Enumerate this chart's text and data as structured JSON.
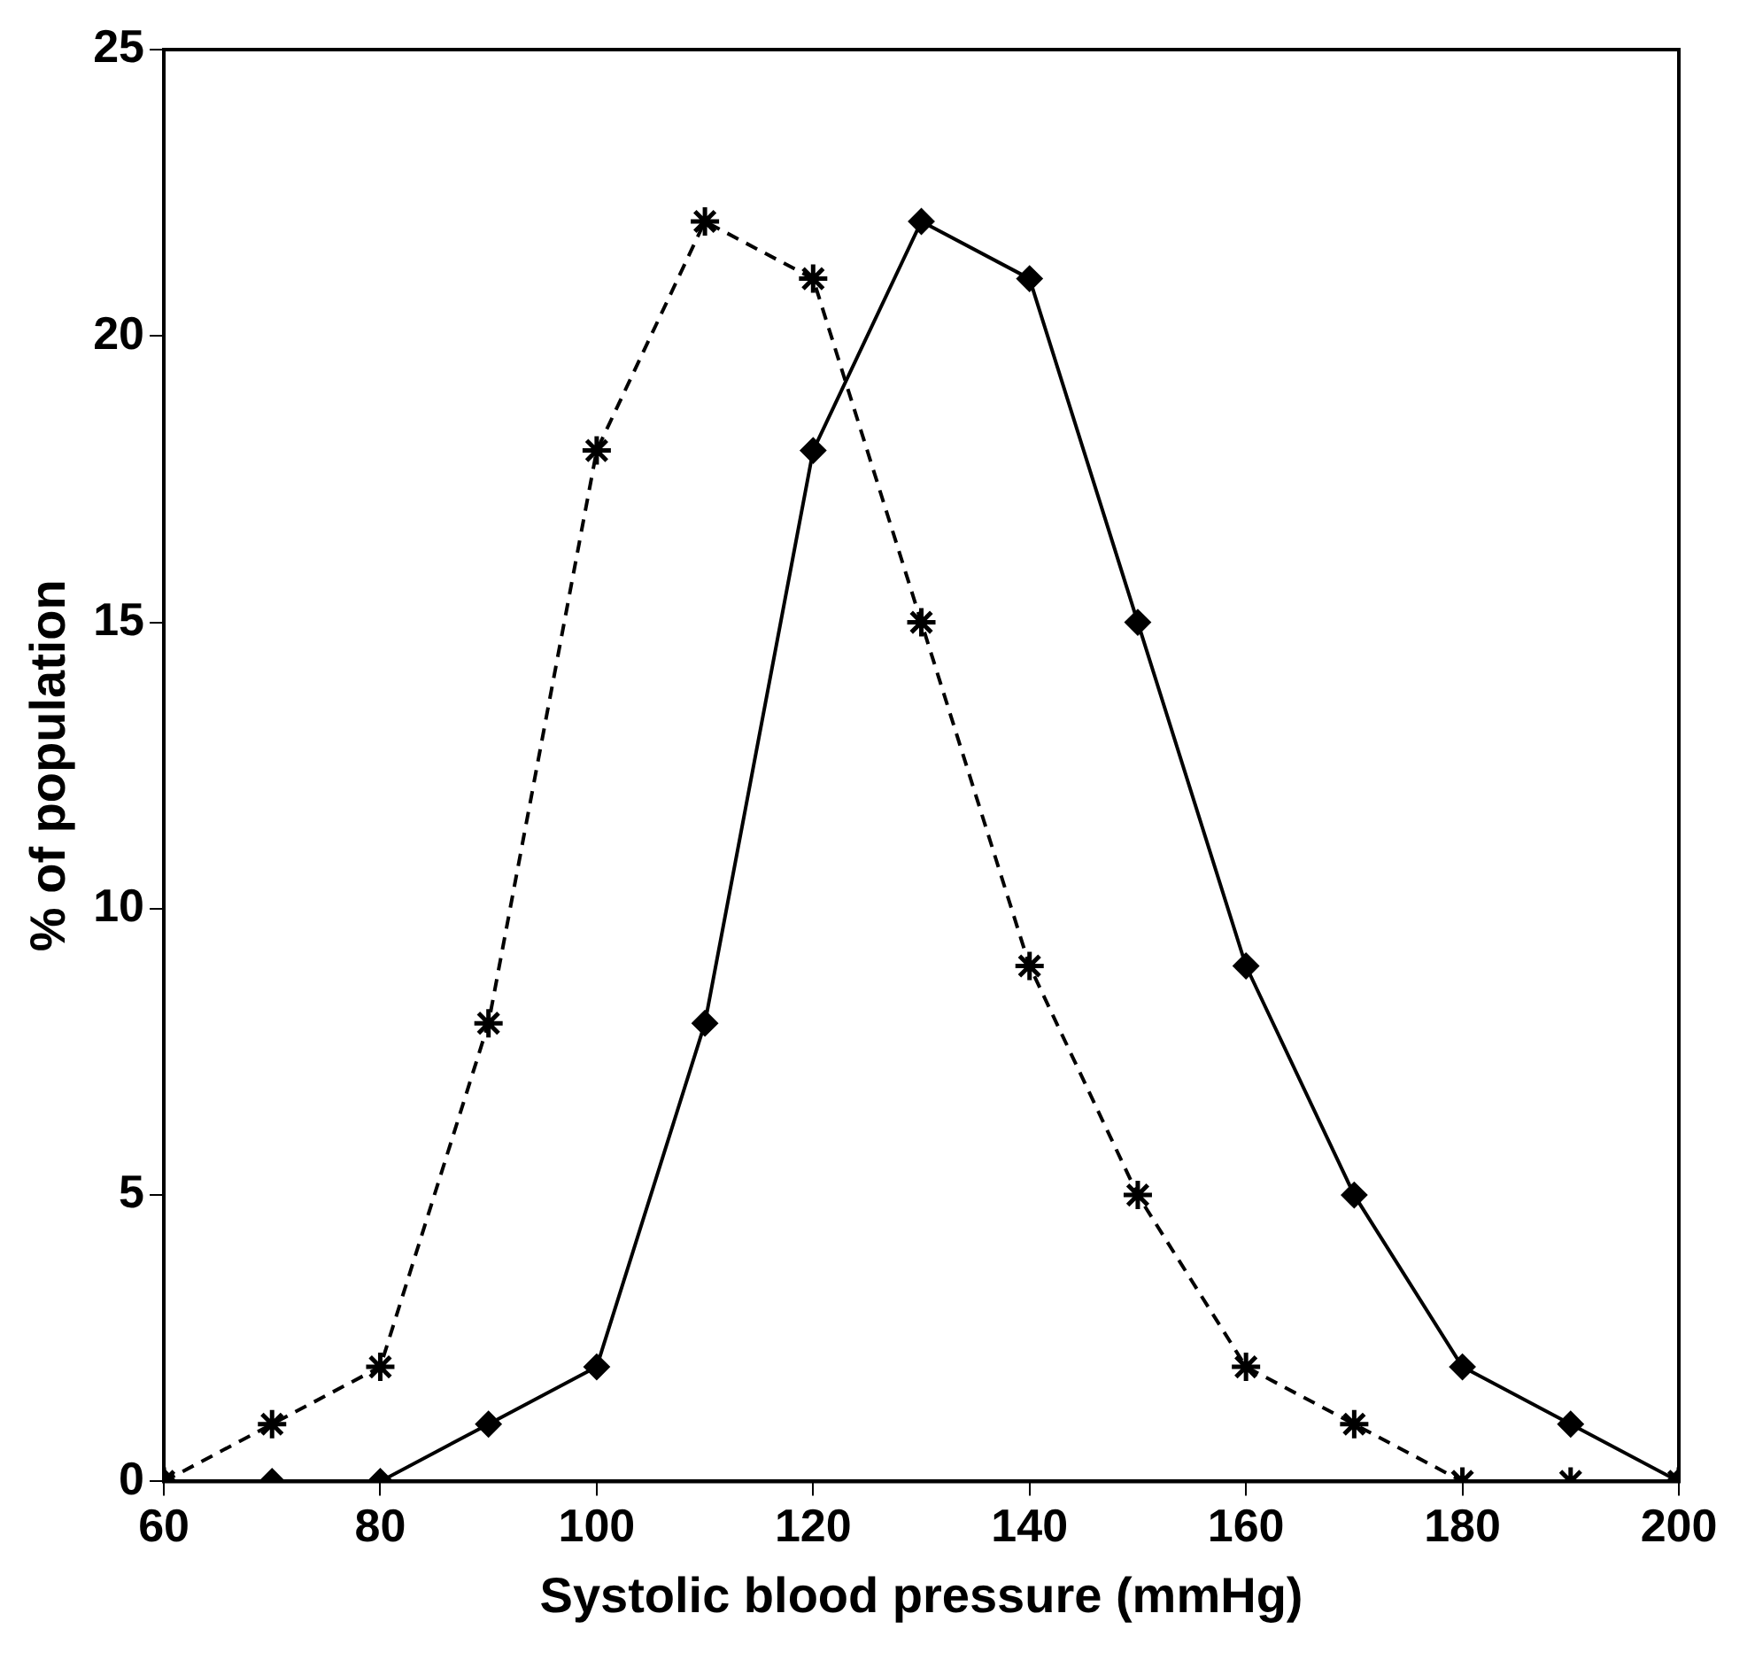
{
  "chart_data": {
    "type": "line",
    "xlabel": "Systolic blood pressure (mmHg)",
    "ylabel": "% of population",
    "x": [
      60,
      70,
      80,
      90,
      100,
      110,
      120,
      130,
      140,
      150,
      160,
      170,
      180,
      190,
      200
    ],
    "series": [
      {
        "color": "#000000",
        "marker": "diamond",
        "line_style": "solid",
        "values": [
          0,
          0,
          0,
          1,
          2,
          8,
          18,
          22,
          21,
          15,
          9,
          5,
          2,
          1,
          0
        ]
      },
      {
        "color": "#000000",
        "marker": "cross",
        "line_style": "dashed",
        "values": [
          0,
          1,
          2,
          8,
          18,
          22,
          21,
          15,
          9,
          5,
          2,
          1,
          0,
          0,
          0
        ]
      }
    ],
    "xlim": [
      60,
      200
    ],
    "xticks": [
      60,
      80,
      100,
      120,
      140,
      160,
      180,
      200
    ],
    "ylim": [
      0,
      25
    ],
    "yticks": [
      0,
      5,
      10,
      15,
      20,
      25
    ],
    "grid": false,
    "legend": false
  }
}
